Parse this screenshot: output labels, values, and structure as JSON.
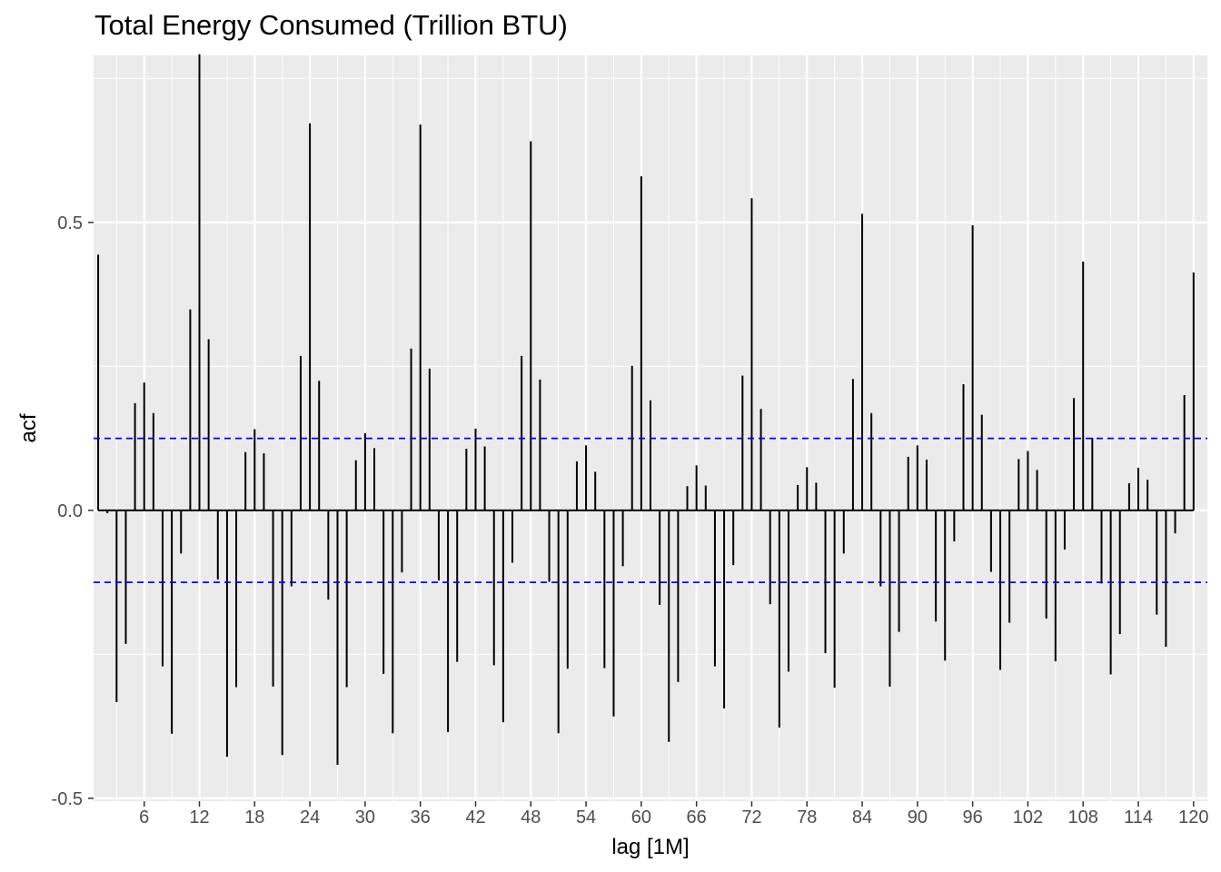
{
  "chart_data": {
    "type": "bar",
    "subtype": "acf-stem",
    "title": "Total Energy Consumed (Trillion BTU)",
    "xlabel": "lag [1M]",
    "ylabel": "acf",
    "xlim": [
      0.5,
      121.5
    ],
    "ylim": [
      -0.505,
      0.79
    ],
    "x_ticks": [
      6,
      12,
      18,
      24,
      30,
      36,
      42,
      48,
      54,
      60,
      66,
      72,
      78,
      84,
      90,
      96,
      102,
      108,
      114,
      120
    ],
    "x_tick_labels": [
      "6",
      "12",
      "18",
      "24",
      "30",
      "36",
      "42",
      "48",
      "54",
      "60",
      "66",
      "72",
      "78",
      "84",
      "90",
      "96",
      "102",
      "108",
      "114",
      "120"
    ],
    "y_ticks": [
      -0.5,
      0.0,
      0.5
    ],
    "y_tick_labels": [
      "-0.5",
      "0.0",
      "0.5"
    ],
    "grid": true,
    "confidence_bound": 0.125,
    "colors": {
      "panel": "#ebebeb",
      "grid": "#ffffff",
      "bars": "#000000",
      "bounds": "#0000ff"
    },
    "lags": [
      1,
      2,
      3,
      4,
      5,
      6,
      7,
      8,
      9,
      10,
      11,
      12,
      13,
      14,
      15,
      16,
      17,
      18,
      19,
      20,
      21,
      22,
      23,
      24,
      25,
      26,
      27,
      28,
      29,
      30,
      31,
      32,
      33,
      34,
      35,
      36,
      37,
      38,
      39,
      40,
      41,
      42,
      43,
      44,
      45,
      46,
      47,
      48,
      49,
      50,
      51,
      52,
      53,
      54,
      55,
      56,
      57,
      58,
      59,
      60,
      61,
      62,
      63,
      64,
      65,
      66,
      67,
      68,
      69,
      70,
      71,
      72,
      73,
      74,
      75,
      76,
      77,
      78,
      79,
      80,
      81,
      82,
      83,
      84,
      85,
      86,
      87,
      88,
      89,
      90,
      91,
      92,
      93,
      94,
      95,
      96,
      97,
      98,
      99,
      100,
      101,
      102,
      103,
      104,
      105,
      106,
      107,
      108,
      109,
      110,
      111,
      112,
      113,
      114,
      115,
      116,
      117,
      118,
      119,
      120
    ],
    "values": [
      0.444,
      -0.005,
      -0.333,
      -0.232,
      0.186,
      0.222,
      0.169,
      -0.271,
      -0.388,
      -0.075,
      0.349,
      0.792,
      0.297,
      -0.12,
      -0.428,
      -0.307,
      0.101,
      0.141,
      0.099,
      -0.306,
      -0.425,
      -0.132,
      0.268,
      0.672,
      0.225,
      -0.155,
      -0.442,
      -0.307,
      0.087,
      0.134,
      0.108,
      -0.284,
      -0.387,
      -0.108,
      0.281,
      0.67,
      0.246,
      -0.122,
      -0.385,
      -0.263,
      0.107,
      0.142,
      0.111,
      -0.269,
      -0.368,
      -0.091,
      0.268,
      0.641,
      0.227,
      -0.124,
      -0.387,
      -0.275,
      0.085,
      0.113,
      0.067,
      -0.274,
      -0.358,
      -0.097,
      0.251,
      0.58,
      0.191,
      -0.164,
      -0.402,
      -0.298,
      0.042,
      0.078,
      0.043,
      -0.271,
      -0.344,
      -0.095,
      0.234,
      0.542,
      0.176,
      -0.163,
      -0.377,
      -0.28,
      0.044,
      0.075,
      0.048,
      -0.248,
      -0.308,
      -0.075,
      0.228,
      0.515,
      0.169,
      -0.132,
      -0.306,
      -0.211,
      0.093,
      0.113,
      0.088,
      -0.193,
      -0.261,
      -0.054,
      0.219,
      0.495,
      0.166,
      -0.107,
      -0.277,
      -0.195,
      0.089,
      0.103,
      0.07,
      -0.188,
      -0.262,
      -0.068,
      0.195,
      0.432,
      0.126,
      -0.127,
      -0.285,
      -0.215,
      0.047,
      0.074,
      0.053,
      -0.181,
      -0.237,
      -0.04,
      0.2,
      0.413
    ]
  }
}
